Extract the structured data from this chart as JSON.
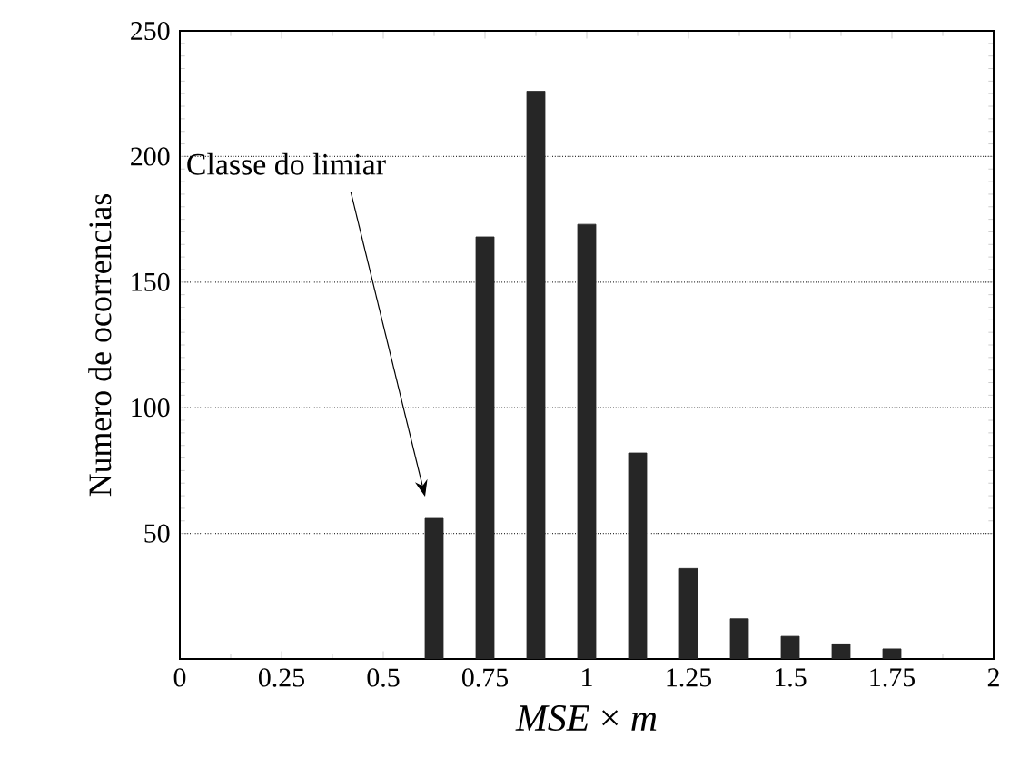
{
  "chart_data": {
    "type": "bar",
    "xlabel": "*MSE* × *m*",
    "ylabel": "Numero de ocorrencias",
    "x": [
      0.625,
      0.75,
      0.875,
      1.0,
      1.125,
      1.25,
      1.375,
      1.5,
      1.625,
      1.75
    ],
    "values": [
      56,
      168,
      226,
      173,
      82,
      36,
      16,
      9,
      6,
      4
    ],
    "color": "#262626",
    "xlim": [
      0,
      2
    ],
    "ylim": [
      0,
      250
    ],
    "xticks": [
      0,
      0.25,
      0.5,
      0.75,
      1,
      1.25,
      1.5,
      1.75,
      2
    ],
    "yticks": [
      50,
      100,
      150,
      200,
      250
    ],
    "grid": "y",
    "annotations": [
      "Classe do limiar"
    ]
  }
}
